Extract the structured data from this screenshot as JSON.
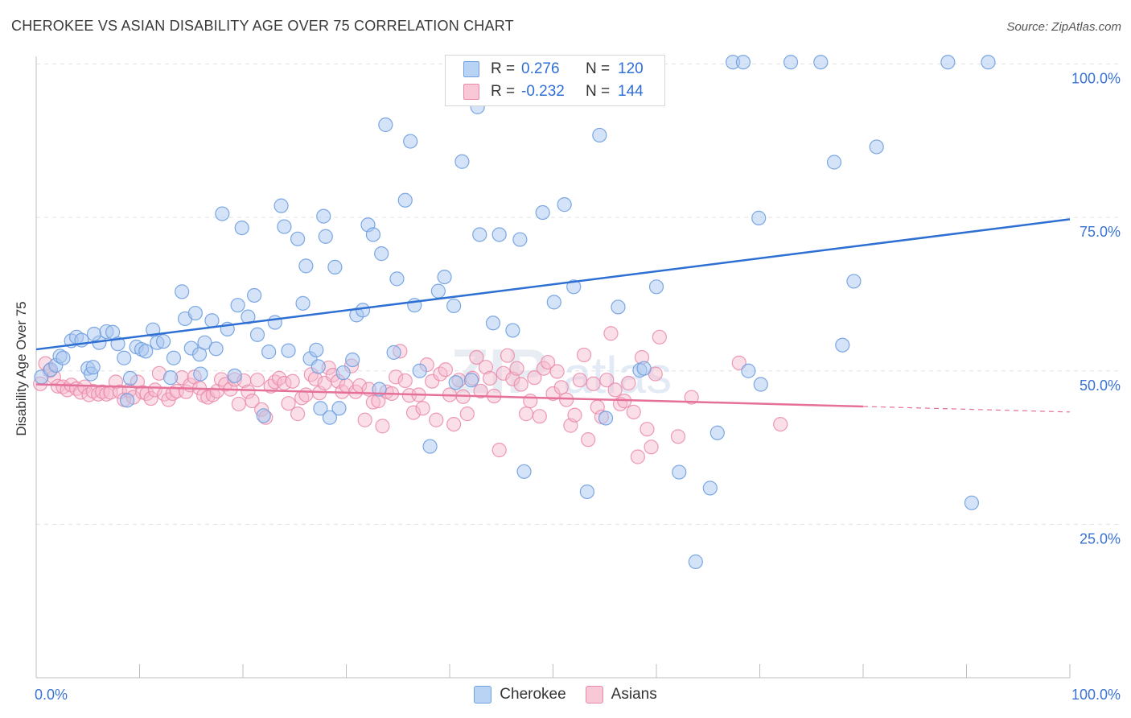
{
  "header": {
    "title": "CHEROKEE VS ASIAN DISABILITY AGE OVER 75 CORRELATION CHART",
    "source": "Source: ZipAtlas.com"
  },
  "legend": {
    "rows": [
      {
        "r_label": "R =",
        "r_value": "0.276",
        "n_label": "N =",
        "n_value": "120"
      },
      {
        "r_label": "R =",
        "r_value": "-0.232",
        "n_label": "N =",
        "n_value": "144"
      }
    ],
    "bottom": [
      "Cherokee",
      "Asians"
    ]
  },
  "colors": {
    "cherokee_fill": "#a9c8f0",
    "cherokee_stroke": "#6f9fe0",
    "cherokee_line": "#2e6fd3",
    "asians_fill": "#f7b9cc",
    "asians_stroke": "#ea8aa8",
    "asians_line": "#e5709a",
    "tick_label": "#3a73d4",
    "grid": "#e2e2e2"
  },
  "chart_data": {
    "type": "scatter",
    "title": "CHEROKEE VS ASIAN DISABILITY AGE OVER 75 CORRELATION CHART",
    "xlabel": "",
    "ylabel": "Disability Age Over 75",
    "xlim": [
      0,
      100
    ],
    "ylim": [
      0,
      103
    ],
    "x_ticks": [
      "0.0%",
      "100.0%"
    ],
    "y_ticks": [
      {
        "value": 25,
        "label": "25.0%"
      },
      {
        "value": 50,
        "label": "50.0%"
      },
      {
        "value": 75,
        "label": "75.0%"
      },
      {
        "value": 100,
        "label": "100.0%"
      }
    ],
    "grid": true,
    "legend_position": "top-center",
    "series": [
      {
        "name": "Cherokee",
        "r": 0.276,
        "n": 120,
        "trend": {
          "x": [
            0,
            100
          ],
          "y": [
            53.5,
            74.7
          ]
        },
        "points": [
          [
            0.5,
            49.0
          ],
          [
            1.4,
            50.2
          ],
          [
            1.9,
            50.9
          ],
          [
            2.3,
            52.4
          ],
          [
            2.6,
            52.1
          ],
          [
            3.4,
            54.9
          ],
          [
            3.9,
            55.5
          ],
          [
            4.4,
            55.0
          ],
          [
            5.0,
            50.4
          ],
          [
            5.3,
            49.5
          ],
          [
            5.5,
            50.6
          ],
          [
            6.1,
            54.6
          ],
          [
            6.8,
            56.4
          ],
          [
            7.4,
            56.3
          ],
          [
            7.9,
            54.4
          ],
          [
            8.5,
            52.1
          ],
          [
            8.8,
            45.2
          ],
          [
            9.7,
            53.9
          ],
          [
            10.2,
            53.5
          ],
          [
            10.6,
            53.2
          ],
          [
            11.3,
            56.7
          ],
          [
            11.7,
            54.6
          ],
          [
            12.3,
            54.8
          ],
          [
            13.0,
            48.9
          ],
          [
            13.3,
            52.1
          ],
          [
            14.1,
            62.9
          ],
          [
            14.4,
            58.5
          ],
          [
            15.0,
            53.7
          ],
          [
            15.4,
            59.4
          ],
          [
            15.8,
            52.7
          ],
          [
            16.3,
            54.6
          ],
          [
            17.0,
            58.2
          ],
          [
            17.4,
            53.6
          ],
          [
            18.0,
            75.6
          ],
          [
            18.5,
            56.8
          ],
          [
            19.2,
            49.2
          ],
          [
            19.5,
            60.7
          ],
          [
            19.9,
            73.3
          ],
          [
            20.5,
            58.8
          ],
          [
            21.1,
            62.3
          ],
          [
            21.4,
            55.9
          ],
          [
            22.0,
            42.7
          ],
          [
            22.5,
            53.1
          ],
          [
            23.1,
            57.9
          ],
          [
            23.7,
            76.9
          ],
          [
            24.0,
            73.5
          ],
          [
            24.4,
            53.3
          ],
          [
            25.3,
            71.5
          ],
          [
            25.8,
            61.0
          ],
          [
            26.1,
            67.1
          ],
          [
            26.5,
            52.0
          ],
          [
            27.1,
            53.4
          ],
          [
            27.5,
            43.9
          ],
          [
            27.8,
            75.2
          ],
          [
            28.0,
            71.9
          ],
          [
            28.4,
            42.4
          ],
          [
            28.9,
            66.9
          ],
          [
            29.3,
            43.9
          ],
          [
            29.7,
            49.7
          ],
          [
            30.6,
            51.8
          ],
          [
            31.0,
            59.1
          ],
          [
            31.6,
            59.9
          ],
          [
            32.1,
            73.8
          ],
          [
            32.6,
            72.2
          ],
          [
            33.4,
            69.1
          ],
          [
            33.8,
            90.1
          ],
          [
            34.6,
            53.0
          ],
          [
            34.9,
            65.0
          ],
          [
            35.7,
            77.8
          ],
          [
            36.2,
            87.4
          ],
          [
            37.1,
            50.0
          ],
          [
            38.1,
            37.7
          ],
          [
            38.9,
            63.0
          ],
          [
            39.5,
            65.3
          ],
          [
            40.4,
            60.6
          ],
          [
            41.2,
            84.1
          ],
          [
            42.1,
            48.5
          ],
          [
            42.7,
            93.0
          ],
          [
            42.9,
            72.2
          ],
          [
            44.2,
            57.8
          ],
          [
            44.8,
            72.2
          ],
          [
            46.1,
            56.6
          ],
          [
            46.8,
            71.4
          ],
          [
            47.2,
            33.6
          ],
          [
            49.0,
            75.8
          ],
          [
            50.1,
            61.2
          ],
          [
            51.1,
            77.1
          ],
          [
            52.0,
            63.7
          ],
          [
            53.3,
            30.3
          ],
          [
            54.5,
            88.4
          ],
          [
            55.1,
            42.3
          ],
          [
            56.3,
            60.4
          ],
          [
            58.4,
            50.1
          ],
          [
            58.8,
            50.4
          ],
          [
            60.0,
            63.7
          ],
          [
            62.2,
            33.5
          ],
          [
            63.8,
            18.9
          ],
          [
            65.2,
            30.9
          ],
          [
            65.9,
            39.9
          ],
          [
            67.4,
            100.3
          ],
          [
            68.4,
            100.3
          ],
          [
            68.9,
            50.0
          ],
          [
            69.9,
            74.9
          ],
          [
            70.1,
            47.8
          ],
          [
            73.0,
            100.3
          ],
          [
            75.9,
            100.3
          ],
          [
            77.2,
            84.0
          ],
          [
            78.0,
            54.2
          ],
          [
            79.1,
            64.6
          ],
          [
            81.3,
            86.5
          ],
          [
            88.2,
            100.3
          ],
          [
            90.5,
            28.5
          ],
          [
            92.1,
            100.3
          ],
          [
            5.6,
            56.0
          ],
          [
            9.1,
            48.8
          ],
          [
            15.9,
            49.5
          ],
          [
            27.3,
            50.7
          ],
          [
            40.6,
            48.1
          ],
          [
            33.2,
            47.0
          ],
          [
            36.6,
            60.7
          ]
        ]
      },
      {
        "name": "Asians",
        "r": -0.232,
        "n": 144,
        "trend": {
          "x": [
            0,
            100
          ],
          "y": [
            47.8,
            43.3
          ]
        },
        "points": [
          [
            0.4,
            47.9
          ],
          [
            0.9,
            51.2
          ],
          [
            1.3,
            50.0
          ],
          [
            1.7,
            49.0
          ],
          [
            2.1,
            47.5
          ],
          [
            2.6,
            47.4
          ],
          [
            3.0,
            46.9
          ],
          [
            3.4,
            47.7
          ],
          [
            3.9,
            47.1
          ],
          [
            4.3,
            46.5
          ],
          [
            4.7,
            47.4
          ],
          [
            5.1,
            46.1
          ],
          [
            5.5,
            46.7
          ],
          [
            6.0,
            46.2
          ],
          [
            6.4,
            46.6
          ],
          [
            6.8,
            46.2
          ],
          [
            7.2,
            46.5
          ],
          [
            7.7,
            48.2
          ],
          [
            8.1,
            46.6
          ],
          [
            8.5,
            45.3
          ],
          [
            9.0,
            46.8
          ],
          [
            9.4,
            45.7
          ],
          [
            9.8,
            48.2
          ],
          [
            10.3,
            46.5
          ],
          [
            10.7,
            46.3
          ],
          [
            11.1,
            45.5
          ],
          [
            11.5,
            46.9
          ],
          [
            11.9,
            49.6
          ],
          [
            12.4,
            46.2
          ],
          [
            12.8,
            45.3
          ],
          [
            13.2,
            46.3
          ],
          [
            13.6,
            46.7
          ],
          [
            14.1,
            48.9
          ],
          [
            14.5,
            46.6
          ],
          [
            14.9,
            47.7
          ],
          [
            15.3,
            49.0
          ],
          [
            15.8,
            47.2
          ],
          [
            16.2,
            46.0
          ],
          [
            16.6,
            45.7
          ],
          [
            17.1,
            46.1
          ],
          [
            17.5,
            46.7
          ],
          [
            17.9,
            48.6
          ],
          [
            18.3,
            47.8
          ],
          [
            18.8,
            47.0
          ],
          [
            19.2,
            48.6
          ],
          [
            19.6,
            44.6
          ],
          [
            20.1,
            48.4
          ],
          [
            20.5,
            46.6
          ],
          [
            20.9,
            45.1
          ],
          [
            21.4,
            48.5
          ],
          [
            21.8,
            43.7
          ],
          [
            22.2,
            42.4
          ],
          [
            22.7,
            47.5
          ],
          [
            23.1,
            48.2
          ],
          [
            23.5,
            48.8
          ],
          [
            24.0,
            48.0
          ],
          [
            24.4,
            44.7
          ],
          [
            24.8,
            48.3
          ],
          [
            25.3,
            43.0
          ],
          [
            25.7,
            45.6
          ],
          [
            26.1,
            46.1
          ],
          [
            26.6,
            49.4
          ],
          [
            27.0,
            48.7
          ],
          [
            27.4,
            46.4
          ],
          [
            27.9,
            48.0
          ],
          [
            28.3,
            50.5
          ],
          [
            28.7,
            49.3
          ],
          [
            29.2,
            48.3
          ],
          [
            29.6,
            46.6
          ],
          [
            30.0,
            47.6
          ],
          [
            30.5,
            50.8
          ],
          [
            30.9,
            46.6
          ],
          [
            31.3,
            47.6
          ],
          [
            31.8,
            42.0
          ],
          [
            32.2,
            47.0
          ],
          [
            32.6,
            44.9
          ],
          [
            33.1,
            45.1
          ],
          [
            33.5,
            41.0
          ],
          [
            33.9,
            46.6
          ],
          [
            34.4,
            46.3
          ],
          [
            34.8,
            49.0
          ],
          [
            35.2,
            53.2
          ],
          [
            35.7,
            48.4
          ],
          [
            36.1,
            46.0
          ],
          [
            36.5,
            43.2
          ],
          [
            37.0,
            46.1
          ],
          [
            37.4,
            43.9
          ],
          [
            37.8,
            51.0
          ],
          [
            38.3,
            48.3
          ],
          [
            38.7,
            42.0
          ],
          [
            39.1,
            49.5
          ],
          [
            39.6,
            50.2
          ],
          [
            40.0,
            46.1
          ],
          [
            40.4,
            41.3
          ],
          [
            40.9,
            48.5
          ],
          [
            41.3,
            45.8
          ],
          [
            41.7,
            43.0
          ],
          [
            42.2,
            48.8
          ],
          [
            42.6,
            52.2
          ],
          [
            43.0,
            46.7
          ],
          [
            43.5,
            50.6
          ],
          [
            43.9,
            48.8
          ],
          [
            44.3,
            45.9
          ],
          [
            44.8,
            37.1
          ],
          [
            45.2,
            49.6
          ],
          [
            45.6,
            52.5
          ],
          [
            46.1,
            48.7
          ],
          [
            46.5,
            50.4
          ],
          [
            46.9,
            47.8
          ],
          [
            47.4,
            43.0
          ],
          [
            47.8,
            45.1
          ],
          [
            48.2,
            48.9
          ],
          [
            48.7,
            42.6
          ],
          [
            49.1,
            50.4
          ],
          [
            49.5,
            51.4
          ],
          [
            50.0,
            46.3
          ],
          [
            50.4,
            49.9
          ],
          [
            50.8,
            47.3
          ],
          [
            51.3,
            45.3
          ],
          [
            51.7,
            41.1
          ],
          [
            52.1,
            42.8
          ],
          [
            52.6,
            48.5
          ],
          [
            53.0,
            52.6
          ],
          [
            53.4,
            38.8
          ],
          [
            53.9,
            47.9
          ],
          [
            54.3,
            44.1
          ],
          [
            54.7,
            42.5
          ],
          [
            55.2,
            48.5
          ],
          [
            55.6,
            56.1
          ],
          [
            56.0,
            46.9
          ],
          [
            56.5,
            44.6
          ],
          [
            56.9,
            45.1
          ],
          [
            57.3,
            48.0
          ],
          [
            57.8,
            43.3
          ],
          [
            58.2,
            36.0
          ],
          [
            58.6,
            52.2
          ],
          [
            59.1,
            40.5
          ],
          [
            59.5,
            37.6
          ],
          [
            59.9,
            49.5
          ],
          [
            60.3,
            55.5
          ],
          [
            62.1,
            39.3
          ],
          [
            63.4,
            45.7
          ],
          [
            68.0,
            51.3
          ],
          [
            72.0,
            41.3
          ]
        ]
      }
    ]
  }
}
